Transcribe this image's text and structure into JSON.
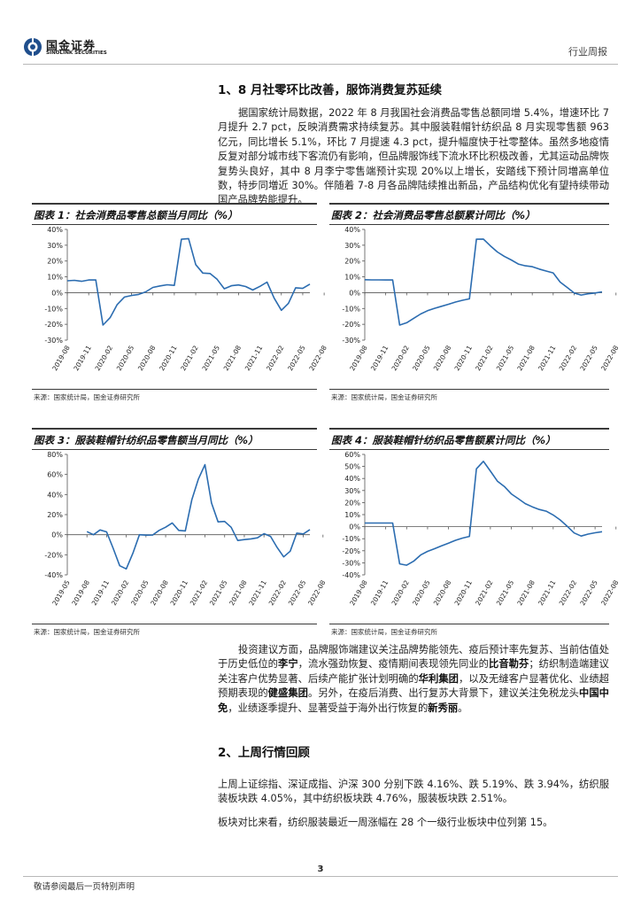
{
  "header": {
    "logo_cn": "国金证券",
    "logo_en": "SINOLINK SECURITIES",
    "report_type": "行业周报"
  },
  "section1": {
    "title": "1、8 月社零环比改善，服饰消费复苏延续",
    "paragraph": "据国家统计局数据，2022 年 8 月我国社会消费品零售总额同增 5.4%，增速环比 7 月提升 2.7 pct，反映消费需求持续复苏。其中服装鞋帽针纺织品 8 月实现零售额 963 亿元，同比增长 5.1%，环比 7 月提速 4.3 pct，提升幅度快于社零整体。虽然多地疫情反复对部分城市线下客流仍有影响，但品牌服饰线下流水环比积极改善，尤其运动品牌恢复势头良好，其中 8 月李宁零售端预计实现 20%以上增长，安踏线下预计同増高单位数，特步同増近 30%。伴随着 7-8 月各品牌陆续推出新品，产品结构优化有望持续带动国产品牌势能提升。"
  },
  "investment": {
    "p1": "投资建议方面，品牌服饰端建议关注品牌势能领先、疫后预计率先复苏、当前估值处于历史低位的",
    "b1": "李宁",
    "p2": "，流水强劲恢复、疫情期间表现领先同业的",
    "b2": "比音勒芬",
    "p3": "；纺织制造端建议关注客户优势显著、后续产能扩张计划明确的",
    "b3": "华利集团",
    "p4": "，以及无缝客户显著优化、业绩超预期表现的",
    "b4": "健盛集团",
    "p5": "。另外，在疫后消费、出行复苏大背景下，建议关注免税龙头",
    "b5": "中国中免",
    "p6": "，业绩逐季提升、显著受益于海外出行恢复的",
    "b6": "新秀丽",
    "p7": "。"
  },
  "section2": {
    "title": "2、上周行情回顾",
    "paragraph1": "上周上证综指、深证成指、沪深 300 分别下跌 4.16%、跌 5.19%、跌 3.94%，纺织服装板块跌 4.05%，其中纺织板块跌 4.76%，服装板块跌 2.51%。",
    "paragraph2": "板块对比来看，纺织服装最近一周涨幅在 28 个一级行业板块中位列第 15。"
  },
  "figures": [
    {
      "title": "图表 1：社会消费品零售总额当月同比（%）",
      "source": "来源：国家统计局，国金证券研究所"
    },
    {
      "title": "图表 2：社会消费品零售总额累计同比（%）",
      "source": "来源：国家统计局，国金证券研究所"
    },
    {
      "title": "图表 3：服装鞋帽针纺织品零售额当月同比（%）",
      "source": "来源：国家统计局，国金证券研究所"
    },
    {
      "title": "图表 4：服装鞋帽针纺织品零售额累计同比（%）",
      "source": "来源：国家统计局，国金证券研究所"
    }
  ],
  "chart_data": [
    {
      "type": "line",
      "ylim": [
        -30,
        40
      ],
      "yticks": [
        -30,
        -20,
        -10,
        0,
        10,
        20,
        30,
        40
      ],
      "x_start": "2019-08",
      "tick_labels": [
        "2019-08",
        "2019-11",
        "2020-02",
        "2020-05",
        "2020-08",
        "2020-11",
        "2021-02",
        "2021-05",
        "2021-08",
        "2021-11",
        "2022-02",
        "2022-05",
        "2022-08"
      ],
      "values": [
        7.5,
        7.8,
        7.2,
        8.0,
        8.0,
        -20.5,
        -15.8,
        -7.5,
        -2.8,
        -1.8,
        -1.1,
        0.5,
        3.3,
        4.3,
        5.0,
        4.6,
        33.8,
        34.2,
        17.7,
        12.4,
        12.1,
        8.5,
        2.5,
        4.4,
        4.9,
        3.9,
        1.7,
        4.0,
        6.7,
        -3.5,
        -11.1,
        -6.7,
        3.1,
        2.7,
        5.4
      ],
      "color": "#2b6cb0",
      "grid": false
    },
    {
      "type": "line",
      "ylim": [
        -30,
        40
      ],
      "yticks": [
        -30,
        -20,
        -10,
        0,
        10,
        20,
        30,
        40
      ],
      "x_start": "2019-08",
      "tick_labels": [
        "2019-08",
        "2019-11",
        "2020-02",
        "2020-05",
        "2020-08",
        "2020-11",
        "2021-02",
        "2021-05",
        "2021-08",
        "2021-11",
        "2022-02",
        "2022-05",
        "2022-08"
      ],
      "values": [
        8.2,
        8.1,
        8.1,
        8.0,
        8.0,
        -20.5,
        -19.0,
        -16.2,
        -13.5,
        -11.4,
        -9.9,
        -8.6,
        -7.3,
        -5.9,
        -4.8,
        -3.9,
        33.8,
        33.9,
        29.6,
        25.7,
        23.0,
        20.7,
        18.1,
        17.0,
        16.4,
        14.9,
        13.7,
        12.5,
        6.7,
        3.3,
        -0.2,
        -1.5,
        -0.7,
        -0.2,
        0.5
      ],
      "color": "#2b6cb0",
      "grid": false
    },
    {
      "type": "line",
      "ylim": [
        -40,
        80
      ],
      "yticks": [
        -40,
        -20,
        0,
        20,
        40,
        60,
        80
      ],
      "x_start": "2019-05",
      "tick_labels": [
        "2019-05",
        "2019-08",
        "2019-11",
        "2020-02",
        "2020-05",
        "2020-08",
        "2020-11",
        "2021-02",
        "2021-05",
        "2021-08",
        "2021-11",
        "2022-02",
        "2022-05",
        "2022-08"
      ],
      "values": [
        null,
        null,
        null,
        3.1,
        0.0,
        4.7,
        2.8,
        -13.5,
        -30.9,
        -34.1,
        -18.5,
        0.0,
        -0.5,
        -0.4,
        4.3,
        7.5,
        11.7,
        4.3,
        3.8,
        34.9,
        55.5,
        69.8,
        31.6,
        12.8,
        13.2,
        7.4,
        -5.8,
        -4.9,
        -4.2,
        -3.1,
        1.0,
        -1.7,
        -12.7,
        -22.1,
        -16.4,
        1.6,
        0.8,
        5.1
      ],
      "color": "#2b6cb0",
      "grid": false
    },
    {
      "type": "line",
      "ylim": [
        -40,
        60
      ],
      "yticks": [
        -40,
        -30,
        -20,
        -10,
        0,
        10,
        20,
        30,
        40,
        50,
        60
      ],
      "x_start": "2019-08",
      "tick_labels": [
        "2019-08",
        "2019-11",
        "2020-02",
        "2020-05",
        "2020-08",
        "2020-11",
        "2021-02",
        "2021-05",
        "2021-08",
        "2021-11",
        "2022-02",
        "2022-05",
        "2022-08"
      ],
      "values": [
        3.0,
        3.0,
        3.0,
        3.0,
        3.0,
        -30.9,
        -32.0,
        -28.7,
        -23.5,
        -20.5,
        -18.3,
        -15.9,
        -13.7,
        -11.3,
        -9.5,
        -8.1,
        48.0,
        54.3,
        46.1,
        37.8,
        33.4,
        27.2,
        23.2,
        19.1,
        16.5,
        14.3,
        12.9,
        9.7,
        5.6,
        0.4,
        -5.2,
        -7.8,
        -6.2,
        -5.1,
        -4.2
      ],
      "color": "#2b6cb0",
      "grid": false
    }
  ],
  "footer": {
    "page_number": "3",
    "disclaimer": "敬请参阅最后一页特别声明"
  }
}
